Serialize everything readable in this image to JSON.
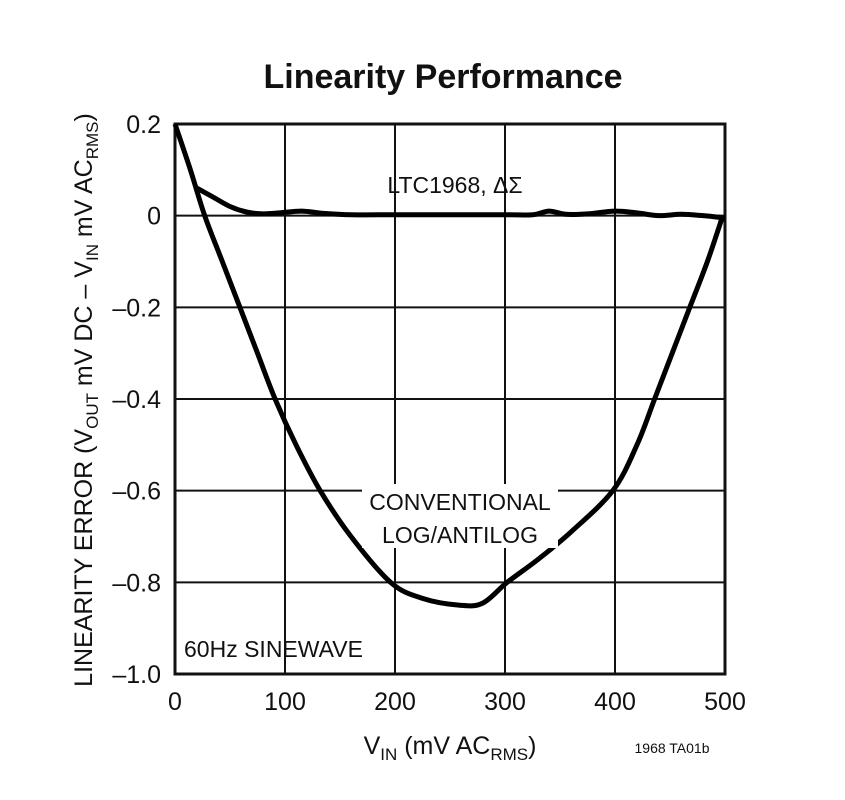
{
  "chart_data": {
    "type": "line",
    "title": "Linearity Performance",
    "xlabel": {
      "main": "V",
      "sub": "IN",
      "rest": " (mV AC",
      "sub2": "RMS",
      "end": ")"
    },
    "ylabel": {
      "p1": "LINEARITY ERROR (V",
      "s1": "OUT",
      "p2": " mV DC – V",
      "s2": "IN",
      "p3": " mV AC",
      "s3": "RMS",
      "p4": ")"
    },
    "xlim": [
      0,
      500
    ],
    "ylim": [
      -1.0,
      0.2
    ],
    "xticks": [
      "0",
      "100",
      "200",
      "300",
      "400",
      "500"
    ],
    "yticks": [
      "0.2",
      "0",
      "–0.2",
      "–0.4",
      "–0.6",
      "–0.8",
      "–1.0"
    ],
    "grid": true,
    "series": [
      {
        "name": "LTC1968, ΔΣ",
        "x": [
          20,
          35,
          50,
          65,
          80,
          95,
          115,
          135,
          160,
          200,
          250,
          300,
          325,
          340,
          355,
          375,
          400,
          420,
          440,
          460,
          480,
          500
        ],
        "y": [
          0.06,
          0.04,
          0.02,
          0.008,
          0.004,
          0.006,
          0.01,
          0.005,
          0.002,
          0.002,
          0.002,
          0.002,
          0.002,
          0.01,
          0.003,
          0.004,
          0.01,
          0.006,
          0.0,
          0.003,
          0.0,
          -0.005
        ]
      },
      {
        "name": "CONVENTIONAL LOG/ANTILOG",
        "x": [
          0,
          14,
          27,
          43,
          59,
          75,
          91,
          110,
          132,
          160,
          196,
          225,
          259,
          280,
          302,
          330,
          360,
          398,
          420,
          436,
          452,
          468,
          484,
          498
        ],
        "y": [
          0.2,
          0.1,
          0.0,
          -0.1,
          -0.2,
          -0.3,
          -0.4,
          -0.5,
          -0.6,
          -0.7,
          -0.8,
          -0.835,
          -0.85,
          -0.845,
          -0.8,
          -0.75,
          -0.69,
          -0.6,
          -0.5,
          -0.4,
          -0.3,
          -0.2,
          -0.1,
          0.0
        ]
      }
    ],
    "annotations": [
      "LTC1968, ΔΣ",
      "CONVENTIONAL",
      "LOG/ANTILOG",
      "60Hz SINEWAVE"
    ],
    "figure_id": "1968 TA01b"
  }
}
